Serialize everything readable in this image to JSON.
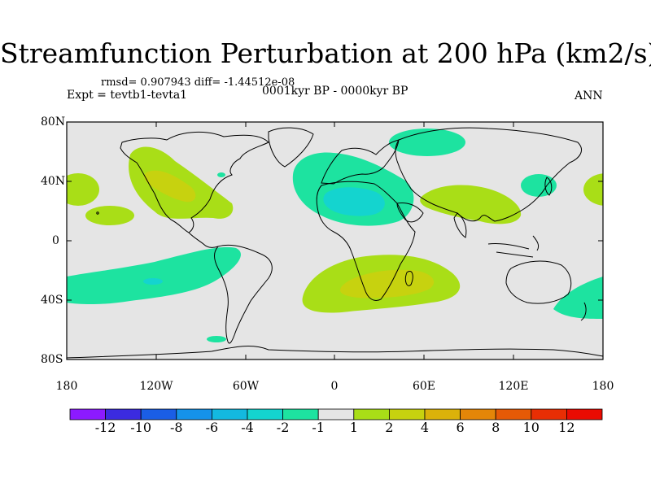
{
  "title": "Streamfunction Perturbation at 200 hPa (km2/s)",
  "stats_text": "rmsd= 0.907943 diff= -1.44512e-08",
  "experiment_text": "Expt = tevtb1-tevta1",
  "period_text": "0001kyr BP - 0000kyr BP",
  "season": "ANN",
  "axes": {
    "lat_labels": [
      "80N",
      "40N",
      "0",
      "40S",
      "80S"
    ],
    "lon_labels": [
      "180",
      "120W",
      "60W",
      "0",
      "60E",
      "120E",
      "180"
    ]
  },
  "colorbar": {
    "labels": [
      "-12",
      "-10",
      "-8",
      "-6",
      "-4",
      "-2",
      "-1",
      "1",
      "2",
      "4",
      "6",
      "8",
      "10",
      "12"
    ],
    "colors": [
      "#8c1aff",
      "#3b2be0",
      "#1a5ee6",
      "#1592ea",
      "#13b9e0",
      "#14d4cf",
      "#1de3a0",
      "#e5e5e5",
      "#a9de17",
      "#c7d20f",
      "#dbb20a",
      "#e48608",
      "#e65a06",
      "#e82e04",
      "#ea0b02"
    ]
  },
  "map_data": {
    "type": "filled-contour",
    "projection": "cylindrical-equidistant",
    "lon_range": [
      -180,
      180
    ],
    "lat_range": [
      -90,
      90
    ],
    "features": [
      {
        "name": "north-america-positive",
        "level": "2 to 4"
      },
      {
        "name": "north-pacific-east",
        "level": "1 to 2"
      },
      {
        "name": "north-africa-negative",
        "level": "-2 to -1"
      },
      {
        "name": "north-atlantic-high",
        "level": "-2 to -1"
      },
      {
        "name": "east-asia-positive",
        "level": "1 to 2"
      },
      {
        "name": "southern-africa-positive",
        "level": "2 to 4"
      },
      {
        "name": "south-pacific-negative",
        "level": "-2 to -1"
      }
    ]
  }
}
